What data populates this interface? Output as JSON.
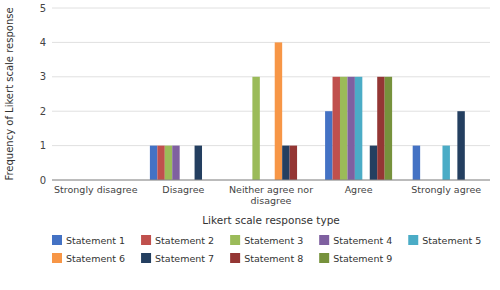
{
  "chart_data": {
    "type": "bar",
    "categories": [
      "Strongly disagree",
      "Disagree",
      "Neither agree nor\ndisagree",
      "Agree",
      "Strongly agree"
    ],
    "series": [
      {
        "name": "Statement 1",
        "color": "#4472C4",
        "values": [
          0,
          1,
          0,
          2,
          1
        ]
      },
      {
        "name": "Statement 2",
        "color": "#C0504D",
        "values": [
          0,
          1,
          0,
          3,
          0
        ]
      },
      {
        "name": "Statement 3",
        "color": "#9BBB59",
        "values": [
          0,
          1,
          3,
          3,
          0
        ]
      },
      {
        "name": "Statement 4",
        "color": "#7F60A0",
        "values": [
          0,
          1,
          0,
          3,
          0
        ]
      },
      {
        "name": "Statement 5",
        "color": "#4BACC6",
        "values": [
          0,
          0,
          0,
          3,
          1
        ]
      },
      {
        "name": "Statement 6",
        "color": "#F79646",
        "values": [
          0,
          0,
          4,
          0,
          0
        ]
      },
      {
        "name": "Statement 7",
        "color": "#243F60",
        "values": [
          0,
          1,
          1,
          1,
          2
        ]
      },
      {
        "name": "Statement 8",
        "color": "#943634",
        "values": [
          0,
          0,
          1,
          3,
          0
        ]
      },
      {
        "name": "Statement 9",
        "color": "#76923C",
        "values": [
          0,
          0,
          0,
          3,
          0
        ]
      }
    ],
    "xlabel": "Likert scale response type",
    "ylabel": "Frequency of Likert scale response",
    "ylim": [
      0,
      5
    ],
    "yticks": [
      0,
      1,
      2,
      3,
      4,
      5
    ],
    "grid": true,
    "legend": "bottom"
  }
}
